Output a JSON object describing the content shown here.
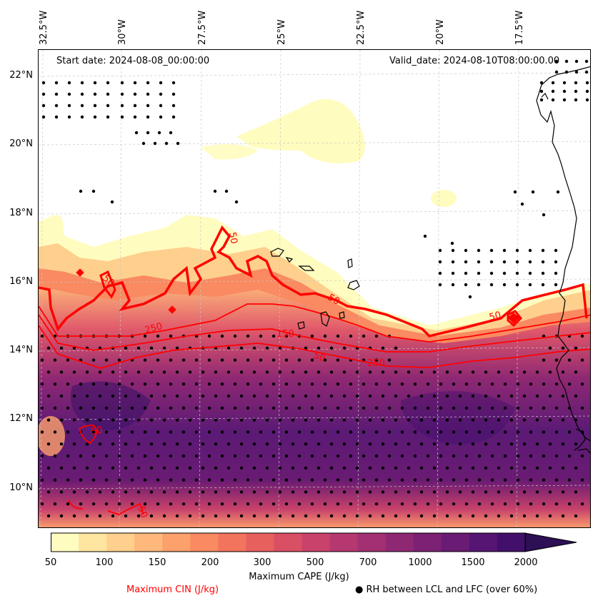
{
  "map": {
    "start_date": "Start date: 2024-08-08_00:00:00",
    "valid_date": "Valid_date: 2024-08-10T08:00:00.00",
    "lon_labels": [
      "32.5°W",
      "30°W",
      "27.5°W",
      "25°W",
      "22.5°W",
      "20°W",
      "17.5°W"
    ],
    "lat_labels": [
      "22°N",
      "20°N",
      "18°N",
      "16°N",
      "14°N",
      "12°N",
      "10°N"
    ],
    "cin_contour_labels": [
      "50",
      "50",
      "50",
      "250",
      "150",
      "50",
      "50",
      "250",
      "50",
      "50"
    ]
  },
  "legend": {
    "colorbar_ticks": [
      "50",
      "100",
      "150",
      "200",
      "300",
      "500",
      "700",
      "1000",
      "1500",
      "2000"
    ],
    "colorbar_colors": [
      "#fffcbf",
      "#fee5a0",
      "#fecf8d",
      "#feb87b",
      "#fca06c",
      "#f98a61",
      "#f3745c",
      "#e8605e",
      "#d94f64",
      "#c8426b",
      "#b53870",
      "#a23072",
      "#8f2873",
      "#7c2173",
      "#6a1b73",
      "#561573",
      "#42106b",
      "#2d0f55"
    ],
    "cape_label": "Maximum CAPE (J/kg)",
    "cin_label": "Maximum CIN (J/kg)",
    "cin_color": "#ff0000",
    "rh_label": "● RH between LCL and LFC (over 60%)"
  }
}
